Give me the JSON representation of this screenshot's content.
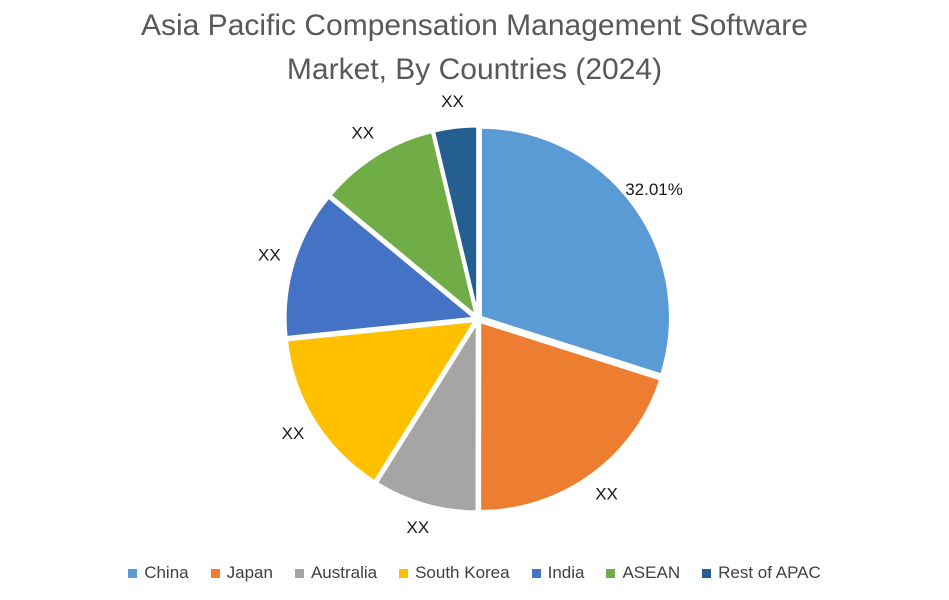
{
  "chart_data": {
    "type": "pie",
    "title_lines": [
      "Asia Pacific Compensation Management Software",
      "Market, By Countries (2024)"
    ],
    "start_angle_deg": 0,
    "slices": [
      {
        "name": "China",
        "value": 32.01,
        "label": "32.01%",
        "color": "#5B9BD5"
      },
      {
        "name": "Japan",
        "value": 21.5,
        "label": "XX",
        "color": "#ED7D31"
      },
      {
        "name": "Australia",
        "value": 9.5,
        "label": "XX",
        "color": "#A5A5A5"
      },
      {
        "name": "South Korea",
        "value": 15.5,
        "label": "XX",
        "color": "#FFC000"
      },
      {
        "name": "India",
        "value": 13.5,
        "label": "XX",
        "color": "#4472C4"
      },
      {
        "name": "ASEAN",
        "value": 11.0,
        "label": "XX",
        "color": "#70AD47"
      },
      {
        "name": "Rest of APAC",
        "value": 3.99,
        "label": "XX",
        "color": "#255E91"
      }
    ],
    "legend": {
      "position": "bottom"
    }
  }
}
